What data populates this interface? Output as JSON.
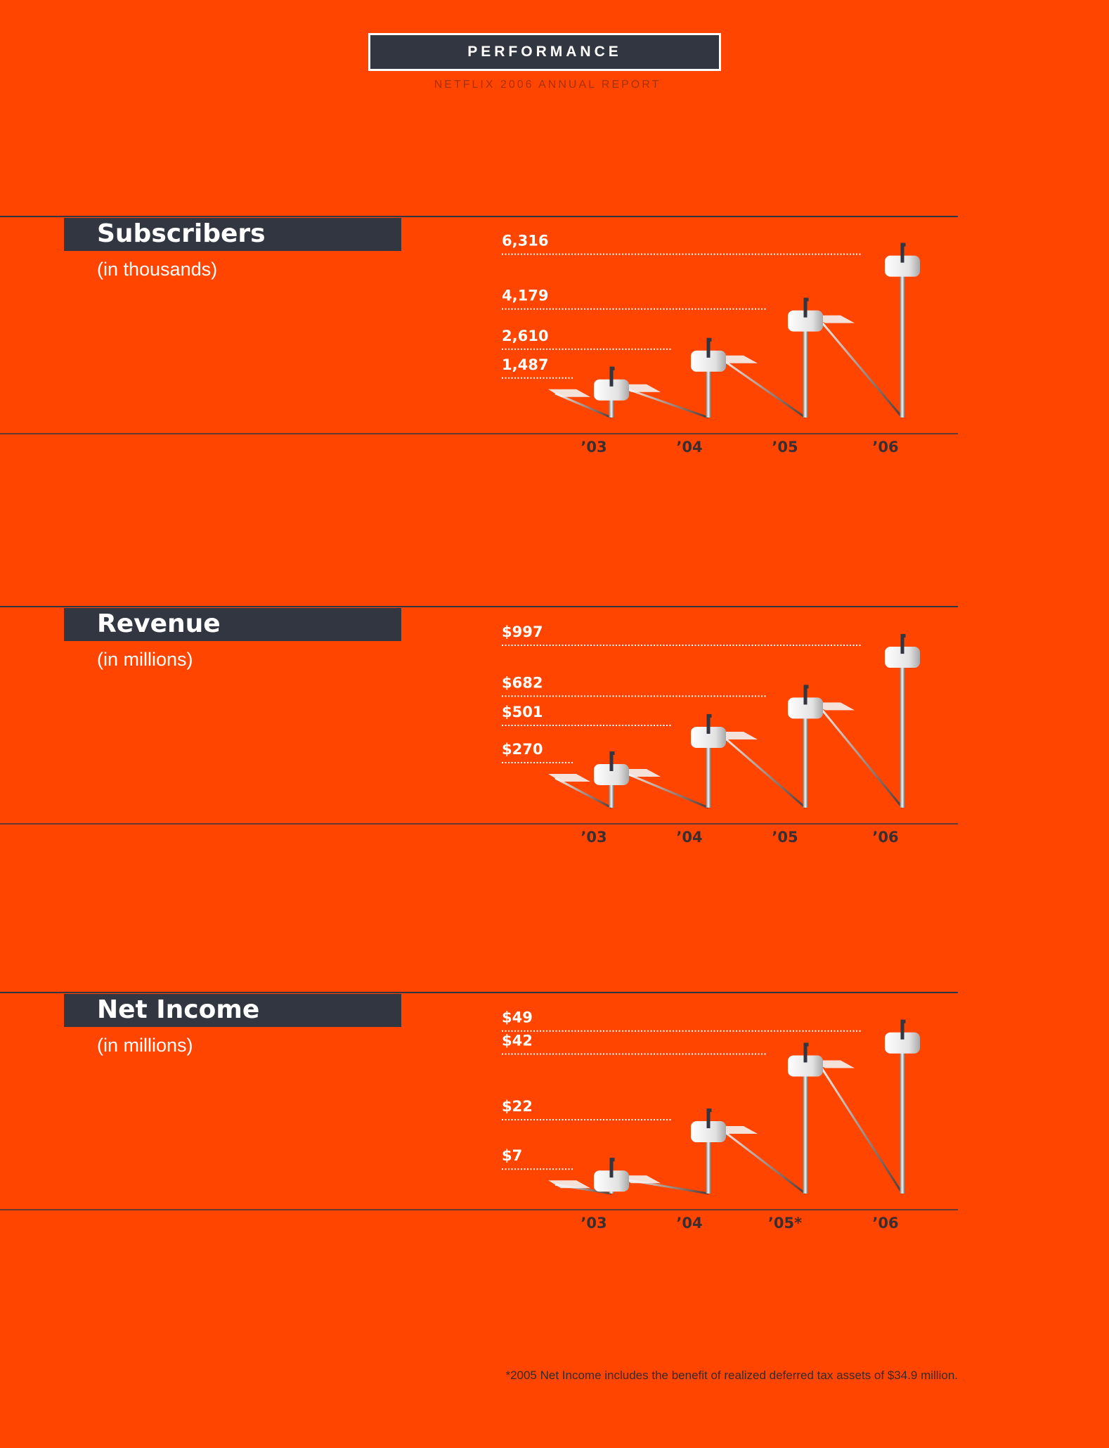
{
  "header": {
    "title": "PERFORMANCE",
    "subtitle": "NETFLIX 2006 ANNUAL REPORT"
  },
  "colors": {
    "background": "#FF4500",
    "dark": "#323640",
    "white": "#FFFFFF",
    "axis_label": "#3A2E30"
  },
  "icons": {
    "marker": "mailbox-icon"
  },
  "chart_data": [
    {
      "type": "bar",
      "title": "Subscribers",
      "subtitle": "(in thousands)",
      "categories": [
        "’03",
        "’04",
        "’05",
        "’06"
      ],
      "values": [
        1487,
        2610,
        4179,
        6316
      ],
      "value_labels": [
        "1,487",
        "2,610",
        "4,179",
        "6,316"
      ],
      "ylim": [
        0,
        6800
      ],
      "grid": false,
      "legend": "none"
    },
    {
      "type": "bar",
      "title": "Revenue",
      "subtitle": "(in millions)",
      "categories": [
        "’03",
        "’04",
        "’05",
        "’06"
      ],
      "values": [
        270,
        501,
        682,
        997
      ],
      "value_labels": [
        "$270",
        "$501",
        "$682",
        "$997"
      ],
      "ylim": [
        0,
        1080
      ],
      "grid": false,
      "legend": "none"
    },
    {
      "type": "bar",
      "title": "Net Income",
      "subtitle": "(in millions)",
      "categories": [
        "’03",
        "’04",
        "’05*",
        "’06"
      ],
      "values": [
        7,
        22,
        42,
        49
      ],
      "value_labels": [
        "$7",
        "$22",
        "$42",
        "$49"
      ],
      "ylim": [
        0,
        53
      ],
      "grid": false,
      "legend": "none"
    }
  ],
  "footnote": "*2005 Net Income includes the benefit of realized deferred tax assets of $34.9 million."
}
